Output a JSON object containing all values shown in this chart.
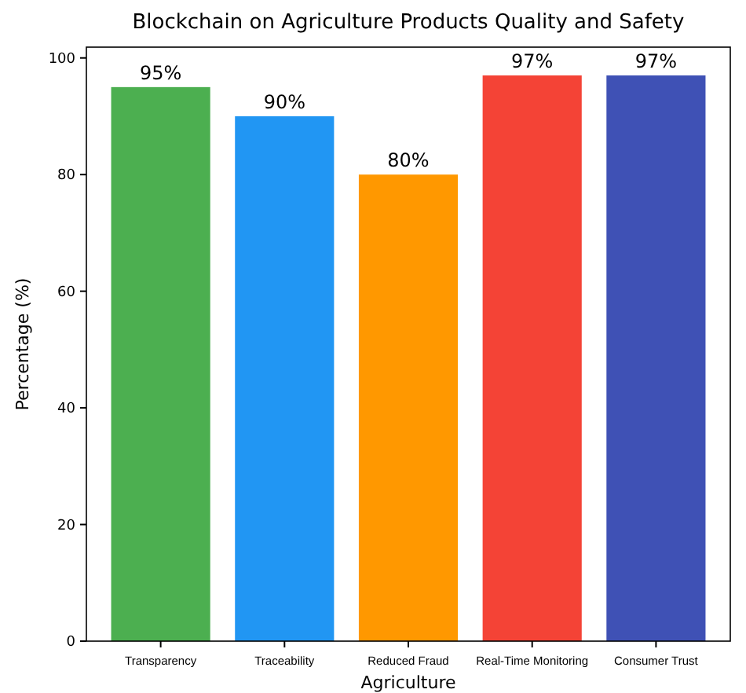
{
  "chart_data": {
    "type": "bar",
    "title": "Blockchain on Agriculture Products Quality and Safety",
    "xlabel": "Agriculture",
    "ylabel": "Percentage (%)",
    "categories": [
      "Transparency",
      "Traceability",
      "Reduced Fraud",
      "Real-Time Monitoring",
      "Consumer Trust"
    ],
    "values": [
      95,
      90,
      80,
      97,
      97
    ],
    "colors": [
      "#4caf50",
      "#2196f3",
      "#ff9800",
      "#f44336",
      "#3f51b5"
    ],
    "value_labels": [
      "95%",
      "90%",
      "80%",
      "97%",
      "97%"
    ],
    "ylim": [
      0,
      101.85
    ],
    "yticks": [
      0,
      20,
      40,
      60,
      80,
      100
    ],
    "grid": false
  }
}
